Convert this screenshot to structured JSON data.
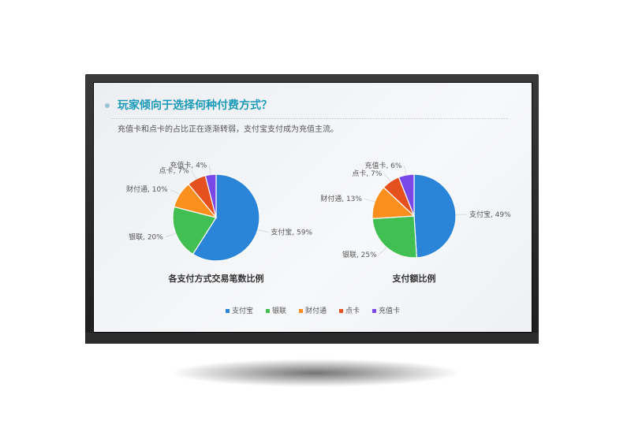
{
  "slide": {
    "title": "玩家倾向于选择何种付费方式？",
    "subtitle": "充值卡和点卡的占比正在逐渐转弱，支付宝支付成为充值主流。"
  },
  "colors": {
    "支付宝": "#2a85d8",
    "银联": "#41bf52",
    "财付通": "#fb8f1e",
    "点卡": "#e4501e",
    "充值卡": "#7a48e6"
  },
  "legend": [
    "支付宝",
    "银联",
    "财付通",
    "点卡",
    "充值卡"
  ],
  "chart_data": [
    {
      "type": "pie",
      "title": "各支付方式交易笔数比例",
      "categories": [
        "支付宝",
        "银联",
        "财付通",
        "点卡",
        "充值卡"
      ],
      "values": [
        59,
        20,
        10,
        7,
        4
      ],
      "labels": [
        "支付宝, 59%",
        "银联, 20%",
        "财付通, 10%",
        "点卡, 7%",
        "充值卡, 4%"
      ]
    },
    {
      "type": "pie",
      "title": "支付额比例",
      "categories": [
        "支付宝",
        "银联",
        "财付通",
        "点卡",
        "充值卡"
      ],
      "values": [
        49,
        25,
        13,
        7,
        6
      ],
      "labels": [
        "支付宝, 49%",
        "银联, 25%",
        "财付通, 13%",
        "点卡, 7%",
        "充值卡, 6%"
      ]
    }
  ]
}
